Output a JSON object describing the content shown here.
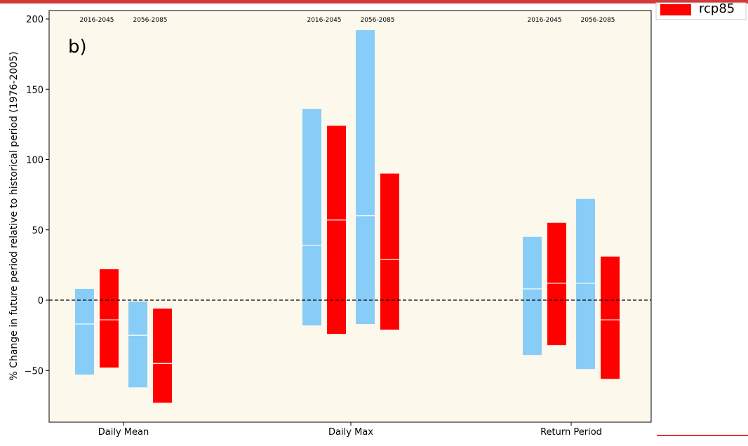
{
  "chart_data": {
    "type": "bar",
    "panel_label": "b)",
    "ylabel": "% Change in future period relative to historical period (1976-2005)",
    "ylim": [
      -86,
      205
    ],
    "yticks": [
      200,
      150,
      100,
      50,
      0,
      -50
    ],
    "ytick_labels": [
      "200",
      "150",
      "100",
      "50",
      "0",
      "−50"
    ],
    "zero_line": true,
    "grid": false,
    "background": "#fdf8ec",
    "categories": [
      "Daily Mean",
      "Daily Max",
      "Return Period"
    ],
    "periods": [
      "2016-2045",
      "2056-2085"
    ],
    "legend": {
      "position": "top-right",
      "visible_entries": [
        "rcp85"
      ]
    },
    "series": [
      {
        "name": "",
        "color": "#88cdf8",
        "ranges": [
          {
            "category": "Daily Mean",
            "period": "2016-2045",
            "low": -53,
            "high": 8,
            "median": -17
          },
          {
            "category": "Daily Mean",
            "period": "2056-2085",
            "low": -62,
            "high": -1,
            "median": -25
          },
          {
            "category": "Daily Max",
            "period": "2016-2045",
            "low": -18,
            "high": 136,
            "median": 39
          },
          {
            "category": "Daily Max",
            "period": "2056-2085",
            "low": -17,
            "high": 192,
            "median": 60
          },
          {
            "category": "Return Period",
            "period": "2016-2045",
            "low": -39,
            "high": 45,
            "median": 8
          },
          {
            "category": "Return Period",
            "period": "2056-2085",
            "low": -49,
            "high": 72,
            "median": 12
          }
        ]
      },
      {
        "name": "rcp85",
        "color": "#ff0000",
        "ranges": [
          {
            "category": "Daily Mean",
            "period": "2016-2045",
            "low": -48,
            "high": 22,
            "median": -14
          },
          {
            "category": "Daily Mean",
            "period": "2056-2085",
            "low": -73,
            "high": -6,
            "median": -45
          },
          {
            "category": "Daily Max",
            "period": "2016-2045",
            "low": -24,
            "high": 124,
            "median": 57
          },
          {
            "category": "Daily Max",
            "period": "2056-2085",
            "low": -21,
            "high": 90,
            "median": 29
          },
          {
            "category": "Return Period",
            "period": "2016-2045",
            "low": -32,
            "high": 55,
            "median": 12
          },
          {
            "category": "Return Period",
            "period": "2056-2085",
            "low": -56,
            "high": 31,
            "median": -14
          }
        ]
      }
    ]
  }
}
